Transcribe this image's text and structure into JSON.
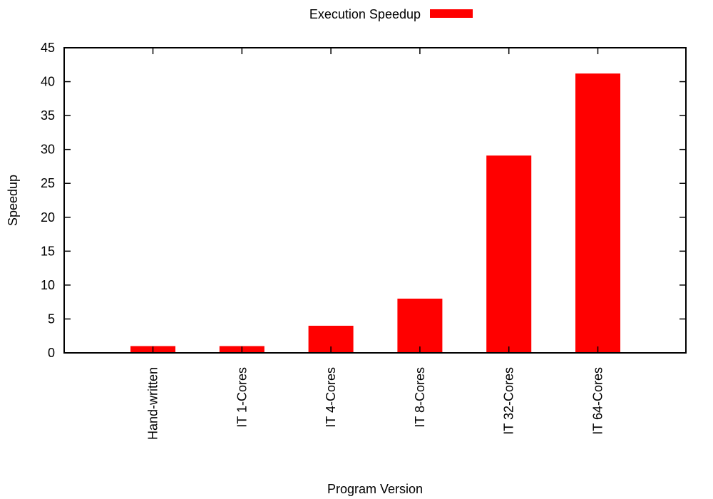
{
  "chart_data": {
    "type": "bar",
    "title": "",
    "xlabel": "Program Version",
    "ylabel": "Speedup",
    "categories": [
      "Hand-written",
      "IT 1-Cores",
      "IT 4-Cores",
      "IT 8-Cores",
      "IT 32-Cores",
      "IT 64-Cores"
    ],
    "series": [
      {
        "name": "Execution Speedup",
        "color": "#ff0000",
        "values": [
          1,
          1,
          4,
          8,
          29.1,
          41.2
        ]
      }
    ],
    "ylim": [
      0,
      45
    ],
    "yticks": [
      0,
      5,
      10,
      15,
      20,
      25,
      30,
      35,
      40,
      45
    ],
    "grid": false,
    "legend_position": "top-center"
  }
}
